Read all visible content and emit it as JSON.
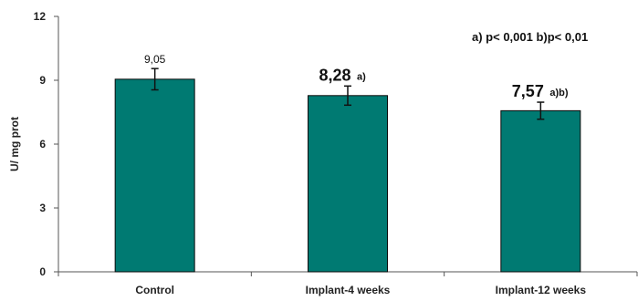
{
  "chart_data": {
    "type": "bar",
    "categories": [
      "Control",
      "Implant-4 weeks",
      "Implant-12 weeks"
    ],
    "values": [
      9.05,
      8.28,
      7.57
    ],
    "error": [
      0.5,
      0.45,
      0.4
    ],
    "value_labels": [
      "9,05",
      "8,28",
      "7,57"
    ],
    "value_sup": [
      "",
      "a)",
      "a)b)"
    ],
    "ylabel": "U/ mg prot",
    "ylim": [
      0,
      12
    ],
    "yticks": [
      0,
      3,
      6,
      9,
      12
    ],
    "annotation": "a) p< 0,001  b)p< 0,01",
    "colors": {
      "bar": "#007A72",
      "bar_stroke": "#0a0a0a",
      "axis": "#555555",
      "text": "#111111"
    },
    "grid": false,
    "legend": "none"
  }
}
